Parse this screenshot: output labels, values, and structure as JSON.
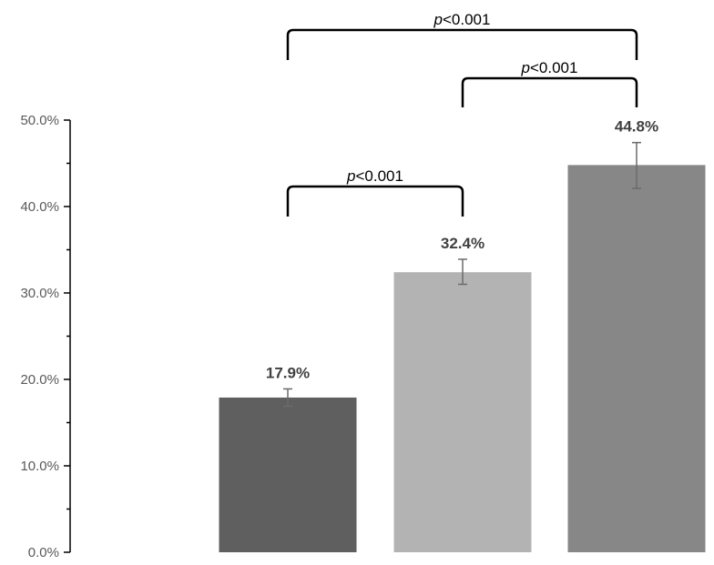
{
  "chart_data": {
    "type": "bar",
    "title": "",
    "xlabel": "",
    "ylabel": "",
    "ylim": [
      0,
      0.5
    ],
    "y_ticks": [
      0.0,
      0.1,
      0.2,
      0.3,
      0.4,
      0.5
    ],
    "y_tick_labels": [
      "0.0%",
      "10.0%",
      "20.0%",
      "30.0%",
      "40.0%",
      "50.0%"
    ],
    "grid": false,
    "legend": "none",
    "categories": [
      "",
      "",
      ""
    ],
    "values": [
      0.179,
      0.324,
      0.448
    ],
    "value_labels": [
      "17.9%",
      "32.4%",
      "44.8%"
    ],
    "error": [
      {
        "low": 0.169,
        "high": 0.189
      },
      {
        "low": 0.31,
        "high": 0.339
      },
      {
        "low": 0.421,
        "high": 0.474
      }
    ],
    "colors": [
      "#5f5f5f",
      "#b3b3b3",
      "#878787"
    ],
    "comparisons": [
      {
        "from": 0,
        "to": 1,
        "p_symbol": "p",
        "p_rest": "<0.001",
        "tier": 0
      },
      {
        "from": 1,
        "to": 2,
        "p_symbol": "p",
        "p_rest": "<0.001",
        "tier": 1
      },
      {
        "from": 0,
        "to": 2,
        "p_symbol": "p",
        "p_rest": "<0.001",
        "tier": 2
      }
    ]
  }
}
